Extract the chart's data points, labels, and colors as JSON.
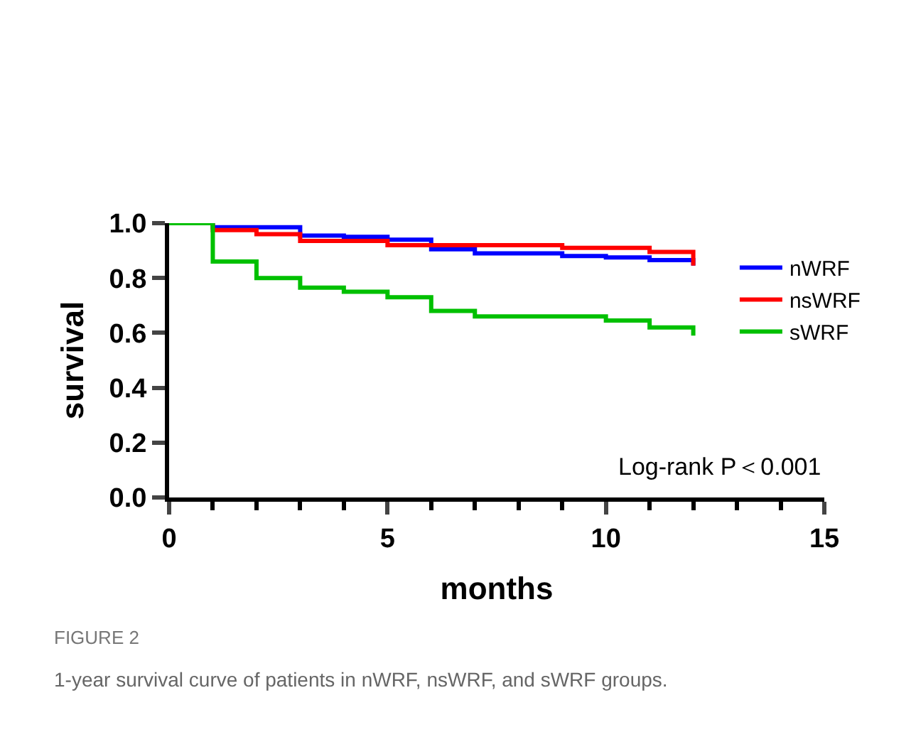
{
  "chart_data": {
    "type": "step",
    "xlabel": "months",
    "ylabel": "survival",
    "xlim": [
      0,
      15
    ],
    "xticks": [
      0,
      5,
      10,
      15
    ],
    "ylim": [
      0,
      1
    ],
    "yticks": [
      {
        "value": 0,
        "label": "0.0"
      },
      {
        "value": 0.2,
        "label": "0.2"
      },
      {
        "value": 0.4,
        "label": "0.4"
      },
      {
        "value": 0.6,
        "label": "0.6"
      },
      {
        "value": 0.8,
        "label": "0.8"
      },
      {
        "value": 1,
        "label": "1.0"
      }
    ],
    "grid": false,
    "legend": "right",
    "marker": "none",
    "line_style": "solid",
    "series": [
      {
        "name": "nWRF",
        "color": "#0000ff",
        "x": [
          0,
          1,
          3,
          4,
          5,
          6,
          7,
          9,
          10,
          11,
          12
        ],
        "values": [
          1,
          0.985,
          0.955,
          0.95,
          0.94,
          0.905,
          0.89,
          0.88,
          0.875,
          0.865,
          0.845
        ]
      },
      {
        "name": "nsWRF",
        "color": "#ff0000",
        "x": [
          0,
          1,
          2,
          3,
          5,
          9,
          11,
          12
        ],
        "values": [
          1,
          0.975,
          0.96,
          0.935,
          0.92,
          0.91,
          0.895,
          0.845
        ]
      },
      {
        "name": "sWRF",
        "color": "#00c000",
        "x": [
          0,
          1,
          2,
          3,
          4,
          5,
          6,
          7,
          10,
          11,
          12
        ],
        "values": [
          1,
          0.86,
          0.8,
          0.765,
          0.75,
          0.73,
          0.68,
          0.66,
          0.645,
          0.62,
          0.59
        ]
      }
    ],
    "annotations": [
      "Log-rank P＜0.001",
      "FIGURE 2",
      "1-year survival curve of patients in nWRF, nsWRF, and sWRF groups."
    ]
  }
}
